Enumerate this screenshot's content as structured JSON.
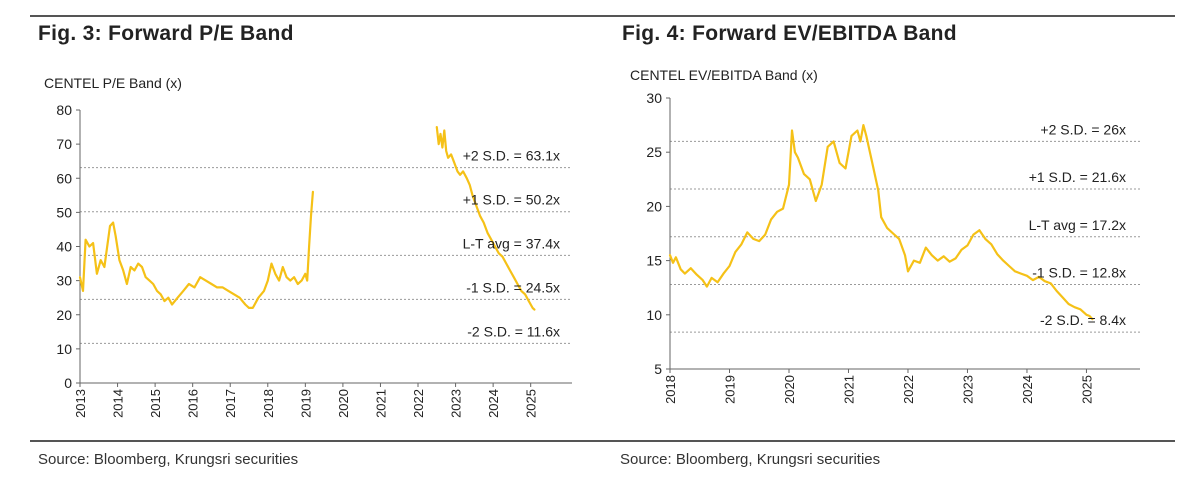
{
  "figures": [
    {
      "title": "Fig. 3:  Forward P/E Band",
      "source": "Source: Bloomberg, Krungsri securities"
    },
    {
      "title": "Fig. 4:  Forward EV/EBITDA Band",
      "source": "Source: Bloomberg, Krungsri securities"
    }
  ],
  "chart_data": [
    {
      "type": "line",
      "title": "CENTEL  P/E Band (x)",
      "xlabel": "",
      "ylabel": "",
      "x_ticks": [
        "2013",
        "2014",
        "2015",
        "2016",
        "2017",
        "2018",
        "2019",
        "2020",
        "2021",
        "2022",
        "2023",
        "2024",
        "2025"
      ],
      "xlim": [
        2013,
        2026.1
      ],
      "ylim": [
        0,
        80
      ],
      "y_ticks": [
        0,
        10,
        20,
        30,
        40,
        50,
        60,
        70,
        80
      ],
      "series": [
        {
          "name": "Forward P/E",
          "color": "#f5c117",
          "segments": [
            [
              [
                2013.0,
                31
              ],
              [
                2013.08,
                27
              ],
              [
                2013.15,
                42
              ],
              [
                2013.25,
                40
              ],
              [
                2013.35,
                41
              ],
              [
                2013.45,
                32
              ],
              [
                2013.55,
                36
              ],
              [
                2013.65,
                34
              ],
              [
                2013.8,
                46
              ],
              [
                2013.88,
                47
              ],
              [
                2013.95,
                43
              ],
              [
                2014.05,
                36
              ],
              [
                2014.15,
                33
              ],
              [
                2014.25,
                29
              ],
              [
                2014.35,
                34
              ],
              [
                2014.45,
                33
              ],
              [
                2014.55,
                35
              ],
              [
                2014.65,
                34
              ],
              [
                2014.75,
                31
              ],
              [
                2014.85,
                30
              ],
              [
                2014.95,
                29
              ],
              [
                2015.05,
                27
              ],
              [
                2015.15,
                26
              ],
              [
                2015.25,
                24
              ],
              [
                2015.35,
                25
              ],
              [
                2015.45,
                23
              ],
              [
                2015.6,
                25
              ],
              [
                2015.75,
                27
              ],
              [
                2015.9,
                29
              ],
              [
                2016.05,
                28
              ],
              [
                2016.2,
                31
              ],
              [
                2016.35,
                30
              ],
              [
                2016.5,
                29
              ],
              [
                2016.65,
                28
              ],
              [
                2016.8,
                28
              ],
              [
                2016.95,
                27
              ],
              [
                2017.1,
                26
              ],
              [
                2017.25,
                25
              ],
              [
                2017.4,
                23
              ],
              [
                2017.5,
                22
              ],
              [
                2017.6,
                22
              ],
              [
                2017.75,
                25
              ],
              [
                2017.9,
                27
              ],
              [
                2018.0,
                30
              ],
              [
                2018.1,
                35
              ],
              [
                2018.2,
                32
              ],
              [
                2018.3,
                30
              ],
              [
                2018.4,
                34
              ],
              [
                2018.5,
                31
              ],
              [
                2018.6,
                30
              ],
              [
                2018.7,
                31
              ],
              [
                2018.8,
                29
              ],
              [
                2018.9,
                30
              ],
              [
                2019.0,
                32
              ],
              [
                2019.05,
                30
              ],
              [
                2019.1,
                40
              ],
              [
                2019.15,
                49
              ],
              [
                2019.2,
                56
              ]
            ],
            [
              [
                2022.5,
                75
              ],
              [
                2022.55,
                70
              ],
              [
                2022.6,
                73
              ],
              [
                2022.65,
                69
              ],
              [
                2022.7,
                74
              ],
              [
                2022.75,
                68
              ],
              [
                2022.8,
                66
              ],
              [
                2022.88,
                67
              ],
              [
                2022.95,
                65
              ],
              [
                2023.05,
                62
              ],
              [
                2023.12,
                61
              ],
              [
                2023.2,
                62
              ],
              [
                2023.3,
                60
              ],
              [
                2023.38,
                58
              ],
              [
                2023.45,
                55
              ],
              [
                2023.55,
                52
              ],
              [
                2023.65,
                49
              ],
              [
                2023.75,
                47
              ],
              [
                2023.85,
                44
              ],
              [
                2023.95,
                42
              ],
              [
                2024.05,
                40
              ],
              [
                2024.15,
                38
              ],
              [
                2024.25,
                37
              ],
              [
                2024.35,
                35
              ],
              [
                2024.45,
                33
              ],
              [
                2024.55,
                31
              ],
              [
                2024.65,
                29
              ],
              [
                2024.75,
                27
              ],
              [
                2024.85,
                26
              ],
              [
                2024.95,
                24
              ],
              [
                2025.05,
                22
              ],
              [
                2025.1,
                21.5
              ]
            ]
          ]
        }
      ],
      "bands": [
        {
          "label": "+2 S.D. = 63.1x",
          "value": 63.1
        },
        {
          "label": "+1 S.D. = 50.2x",
          "value": 50.2
        },
        {
          "label": "L-T avg = 37.4x",
          "value": 37.4
        },
        {
          "label": "-1 S.D. = 24.5x",
          "value": 24.5
        },
        {
          "label": "-2 S.D. = 11.6x",
          "value": 11.6
        }
      ]
    },
    {
      "type": "line",
      "title": "CENTEL  EV/EBITDA  Band (x)",
      "xlabel": "",
      "ylabel": "",
      "x_ticks": [
        "2018",
        "2019",
        "2020",
        "2021",
        "2022",
        "2023",
        "2024",
        "2025"
      ],
      "xlim": [
        2018,
        2025.9
      ],
      "ylim": [
        5,
        30
      ],
      "y_ticks": [
        5,
        10,
        15,
        20,
        25,
        30
      ],
      "series": [
        {
          "name": "Forward EV/EBITDA",
          "color": "#f5c117",
          "segments": [
            [
              [
                2018.0,
                15.5
              ],
              [
                2018.05,
                14.8
              ],
              [
                2018.1,
                15.3
              ],
              [
                2018.18,
                14.2
              ],
              [
                2018.25,
                13.8
              ],
              [
                2018.35,
                14.3
              ],
              [
                2018.45,
                13.7
              ],
              [
                2018.55,
                13.2
              ],
              [
                2018.62,
                12.6
              ],
              [
                2018.7,
                13.4
              ],
              [
                2018.8,
                13.0
              ],
              [
                2018.9,
                13.8
              ],
              [
                2019.0,
                14.5
              ],
              [
                2019.1,
                15.8
              ],
              [
                2019.2,
                16.5
              ],
              [
                2019.3,
                17.6
              ],
              [
                2019.4,
                17.0
              ],
              [
                2019.5,
                16.8
              ],
              [
                2019.6,
                17.4
              ],
              [
                2019.7,
                18.8
              ],
              [
                2019.8,
                19.5
              ],
              [
                2019.9,
                19.8
              ],
              [
                2020.0,
                22.0
              ],
              [
                2020.05,
                27.0
              ],
              [
                2020.1,
                25.0
              ],
              [
                2020.15,
                24.5
              ],
              [
                2020.25,
                23.0
              ],
              [
                2020.35,
                22.5
              ],
              [
                2020.45,
                20.5
              ],
              [
                2020.55,
                22.0
              ],
              [
                2020.65,
                25.5
              ],
              [
                2020.75,
                26.0
              ],
              [
                2020.85,
                24.0
              ],
              [
                2020.95,
                23.5
              ],
              [
                2021.05,
                26.5
              ],
              [
                2021.15,
                27.0
              ],
              [
                2021.2,
                26.0
              ],
              [
                2021.25,
                27.5
              ],
              [
                2021.3,
                26.5
              ],
              [
                2021.4,
                24.0
              ],
              [
                2021.5,
                21.5
              ],
              [
                2021.55,
                19.0
              ],
              [
                2021.65,
                18.0
              ],
              [
                2021.75,
                17.5
              ],
              [
                2021.85,
                17.0
              ],
              [
                2021.95,
                15.5
              ],
              [
                2022.0,
                14.0
              ],
              [
                2022.1,
                15.0
              ],
              [
                2022.2,
                14.8
              ],
              [
                2022.3,
                16.2
              ],
              [
                2022.4,
                15.5
              ],
              [
                2022.5,
                15.0
              ],
              [
                2022.6,
                15.4
              ],
              [
                2022.7,
                14.9
              ],
              [
                2022.8,
                15.2
              ],
              [
                2022.9,
                16.0
              ],
              [
                2023.0,
                16.4
              ],
              [
                2023.1,
                17.4
              ],
              [
                2023.2,
                17.8
              ],
              [
                2023.3,
                17.0
              ],
              [
                2023.4,
                16.5
              ],
              [
                2023.5,
                15.6
              ],
              [
                2023.6,
                15.0
              ],
              [
                2023.7,
                14.5
              ],
              [
                2023.8,
                14.0
              ],
              [
                2023.9,
                13.8
              ],
              [
                2024.0,
                13.6
              ],
              [
                2024.1,
                13.2
              ],
              [
                2024.2,
                13.5
              ],
              [
                2024.3,
                13.1
              ],
              [
                2024.4,
                12.9
              ],
              [
                2024.5,
                12.2
              ],
              [
                2024.6,
                11.6
              ],
              [
                2024.7,
                11.0
              ],
              [
                2024.8,
                10.7
              ],
              [
                2024.9,
                10.5
              ],
              [
                2025.0,
                10.0
              ],
              [
                2025.05,
                9.9
              ],
              [
                2025.1,
                9.6
              ]
            ]
          ]
        }
      ],
      "bands": [
        {
          "label": "+2 S.D. = 26x",
          "value": 26.0
        },
        {
          "label": "+1 S.D. = 21.6x",
          "value": 21.6
        },
        {
          "label": "L-T avg = 17.2x",
          "value": 17.2
        },
        {
          "label": "-1 S.D. = 12.8x",
          "value": 12.8
        },
        {
          "label": "-2 S.D. = 8.4x",
          "value": 8.4
        }
      ]
    }
  ]
}
